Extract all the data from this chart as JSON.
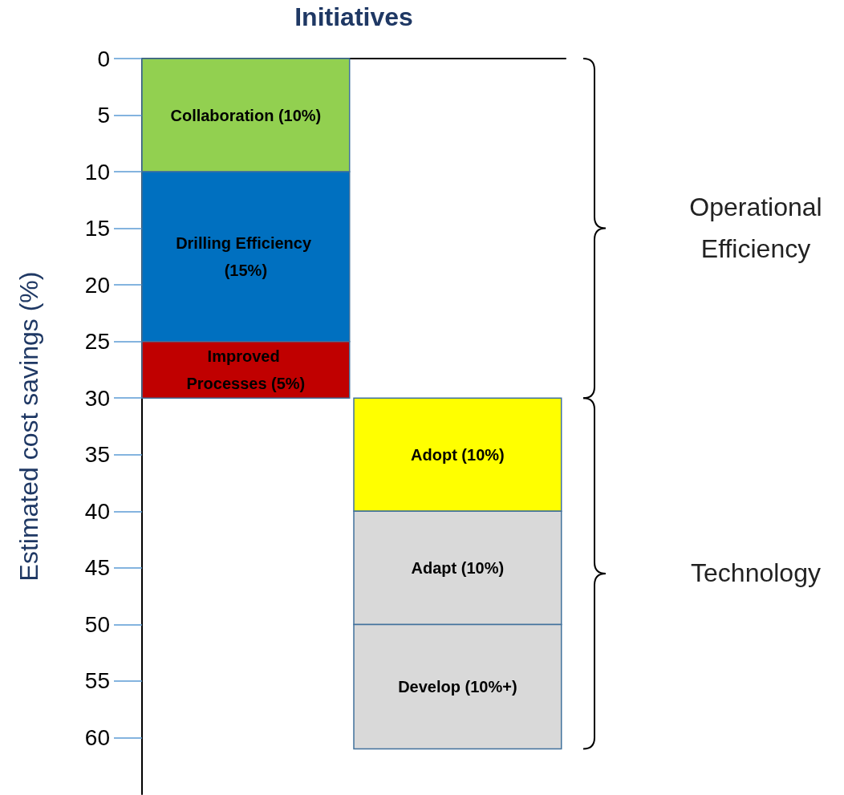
{
  "chart_data": {
    "type": "bar",
    "xlabel": "Initiatives",
    "ylabel": "Estimated cost savings (%)",
    "categories": [
      null,
      null
    ],
    "series": [
      {
        "name": "Collaboration (10%)",
        "color": "#92d050",
        "values": [
          10,
          null
        ],
        "base": [
          0,
          null
        ]
      },
      {
        "name": "Drilling Efficiency (15%)",
        "color": "#0070c0",
        "values": [
          15,
          null
        ],
        "base": [
          10,
          null
        ]
      },
      {
        "name": "Improved Processes (5%)",
        "color": "#c00000",
        "values": [
          5,
          null
        ],
        "base": [
          25,
          null
        ]
      },
      {
        "name": "Adopt (10%)",
        "color": "#ffff00",
        "values": [
          null,
          10
        ],
        "base": [
          null,
          30
        ]
      },
      {
        "name": "Adapt (10%)",
        "color": "#d9d9d9",
        "values": [
          null,
          10
        ],
        "base": [
          null,
          40
        ]
      },
      {
        "name": "Develop (10%+)",
        "color": "#d9d9d9",
        "values": [
          null,
          11
        ],
        "base": [
          null,
          50
        ]
      }
    ],
    "ylim": [
      65,
      0
    ],
    "yticks": [
      0,
      5,
      10,
      15,
      20,
      25,
      30,
      35,
      40,
      45,
      50,
      55,
      60
    ],
    "tick_labels": "y",
    "grid": false,
    "annotations": [
      "Operational Efficiency",
      "Technology"
    ]
  }
}
